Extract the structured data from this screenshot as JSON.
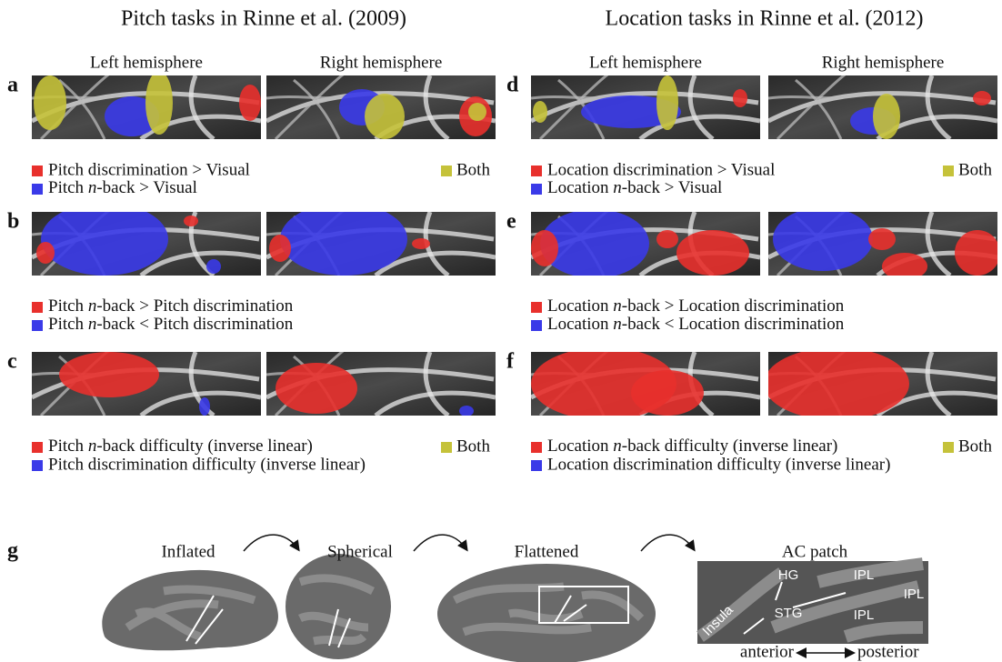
{
  "columns": [
    {
      "title": "Pitch tasks in Rinne et al. (2009)",
      "hemispheres": [
        "Left hemisphere",
        "Right hemisphere"
      ],
      "panels": [
        {
          "letter": "a",
          "legend": [
            {
              "color": "#e8302c",
              "text": "Pitch discrimination > Visual"
            },
            {
              "color": "#3a3ae8",
              "text": "Pitch n-back > Visual"
            }
          ],
          "both": {
            "color": "#c5c23a",
            "text": "Both"
          }
        },
        {
          "letter": "b",
          "legend": [
            {
              "color": "#e8302c",
              "text": "Pitch n-back > Pitch discrimination"
            },
            {
              "color": "#3a3ae8",
              "text": "Pitch n-back < Pitch discrimination"
            }
          ]
        },
        {
          "letter": "c",
          "legend": [
            {
              "color": "#e8302c",
              "text": "Pitch n-back difficulty (inverse linear)"
            },
            {
              "color": "#3a3ae8",
              "text": "Pitch discrimination difficulty (inverse linear)"
            }
          ],
          "both": {
            "color": "#c5c23a",
            "text": "Both"
          }
        }
      ]
    },
    {
      "title": "Location tasks in Rinne et al. (2012)",
      "hemispheres": [
        "Left hemisphere",
        "Right hemisphere"
      ],
      "panels": [
        {
          "letter": "d",
          "legend": [
            {
              "color": "#e8302c",
              "text": "Location discrimination > Visual"
            },
            {
              "color": "#3a3ae8",
              "text": "Location n-back > Visual"
            }
          ],
          "both": {
            "color": "#c5c23a",
            "text": "Both"
          }
        },
        {
          "letter": "e",
          "legend": [
            {
              "color": "#e8302c",
              "text": "Location n-back > Location discrimination"
            },
            {
              "color": "#3a3ae8",
              "text": "Location n-back < Location discrimination"
            }
          ]
        },
        {
          "letter": "f",
          "legend": [
            {
              "color": "#e8302c",
              "text": "Location n-back difficulty (inverse linear)"
            },
            {
              "color": "#3a3ae8",
              "text": "Location discrimination difficulty (inverse linear)"
            }
          ],
          "both": {
            "color": "#c5c23a",
            "text": "Both"
          }
        }
      ]
    }
  ],
  "pipeline": {
    "letter": "g",
    "stages": [
      "Inflated",
      "Spherical",
      "Flattened",
      "AC patch"
    ],
    "patch_labels": [
      "Insula",
      "HG",
      "STG",
      "IPL",
      "IPL",
      "IPL"
    ],
    "direction": [
      "anterior",
      "posterior"
    ]
  }
}
